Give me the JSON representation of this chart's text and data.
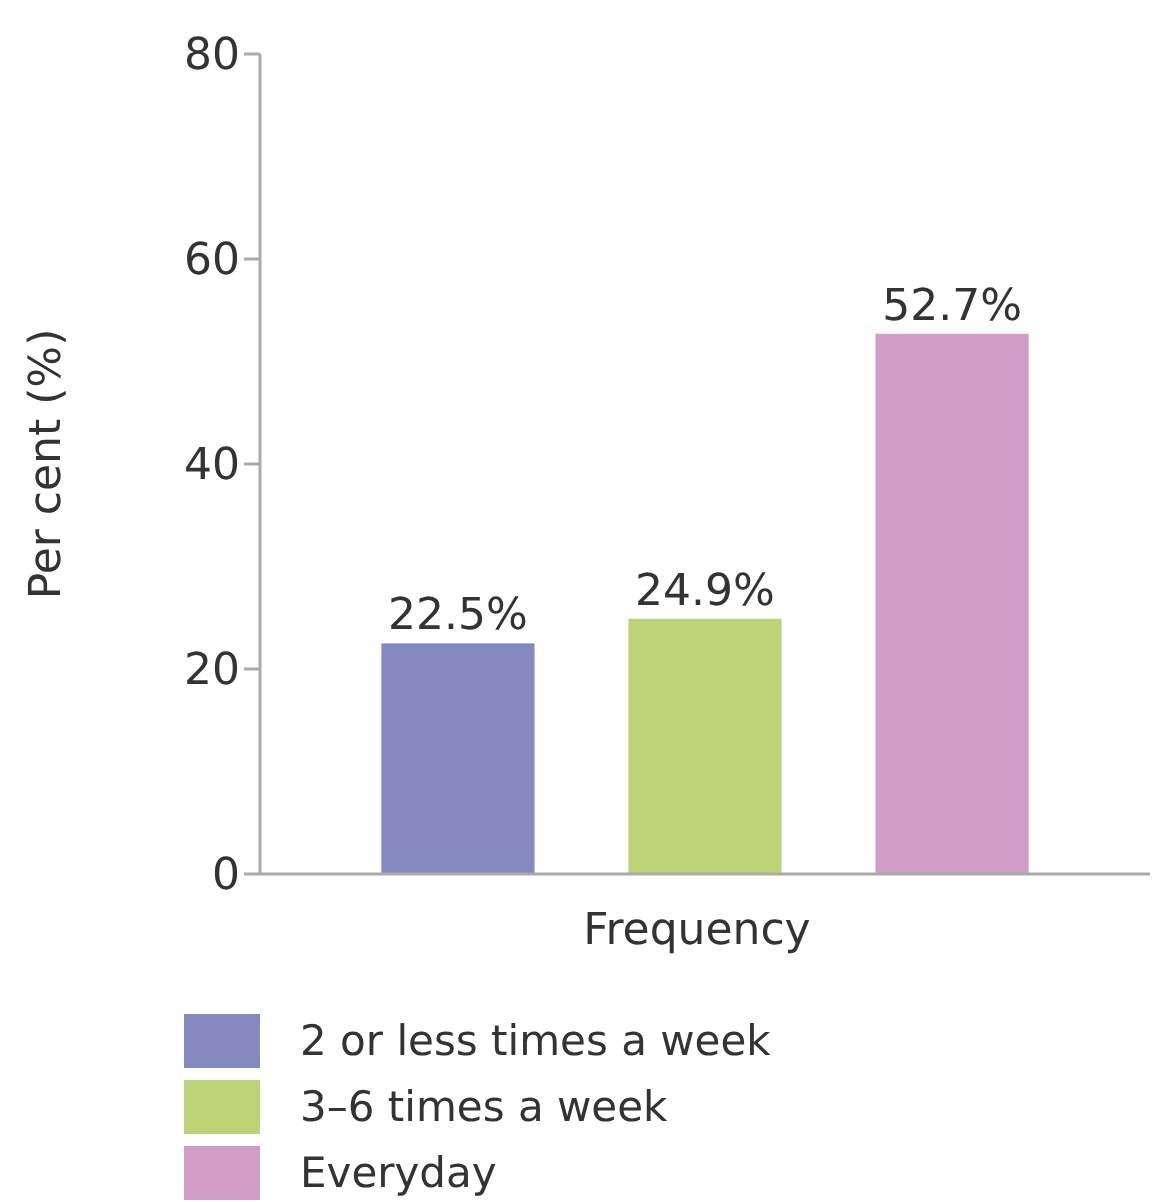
{
  "chart_data": {
    "type": "bar",
    "xlabel": "Frequency",
    "ylabel": "Per cent (%)",
    "categories": [
      null
    ],
    "series": [
      {
        "name": "2 or less times a week",
        "color": "#8488bf",
        "values": [
          22.5
        ],
        "value_labels": [
          "22.5%"
        ]
      },
      {
        "name": "3–6 times a week",
        "color": "#bdd378",
        "values": [
          24.9
        ],
        "value_labels": [
          "24.9%"
        ]
      },
      {
        "name": "Everyday",
        "color": "#d09cc8",
        "values": [
          52.7
        ],
        "value_labels": [
          "52.7%"
        ]
      }
    ],
    "ylim": [
      0,
      80
    ],
    "yticks": [
      0,
      20,
      40,
      60,
      80
    ],
    "grid": false,
    "legend": "bottom"
  }
}
